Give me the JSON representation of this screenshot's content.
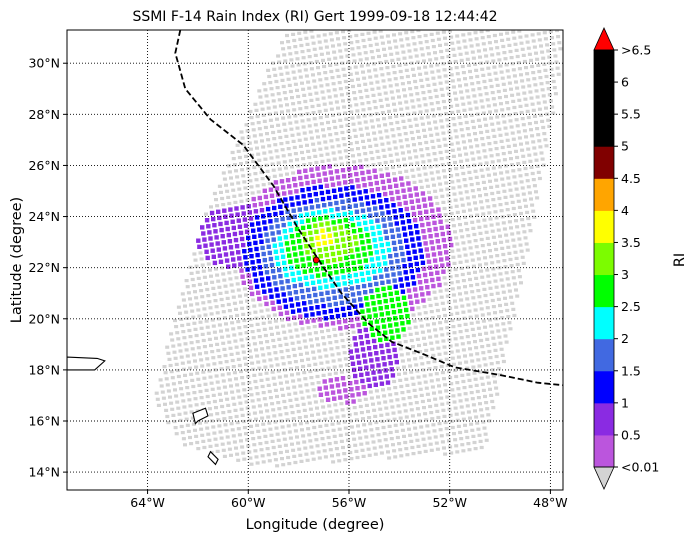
{
  "title": "SSMI F-14 Rain Index (RI) Gert 1999-09-18 12:44:42",
  "xlabel": "Longitude (degree)",
  "ylabel": "Latitude (degree)",
  "x_ticks": [
    "64°W",
    "60°W",
    "56°W",
    "52°W",
    "48°W"
  ],
  "y_ticks": [
    "14°N",
    "16°N",
    "18°N",
    "20°N",
    "22°N",
    "24°N",
    "26°N",
    "28°N",
    "30°N"
  ],
  "colorbar": {
    "label": "RI",
    "tick_labels": [
      "<0.01",
      "0.5",
      "1",
      "1.5",
      "2",
      "2.5",
      "3",
      "3.5",
      "4",
      "4.5",
      "5",
      "5.5",
      "6",
      ">6.5"
    ],
    "under_color": "#d3d3d3",
    "over_color": "#ff0000",
    "bins": [
      {
        "label": "<0.01 to 0.5",
        "color": "#bb55dd"
      },
      {
        "label": "0.5 to 1",
        "color": "#8a2be2"
      },
      {
        "label": "1 to 1.5",
        "color": "#0000ff"
      },
      {
        "label": "1.5 to 2",
        "color": "#4169e1"
      },
      {
        "label": "2 to 2.5",
        "color": "#00ffff"
      },
      {
        "label": "2.5 to 3",
        "color": "#00ff00"
      },
      {
        "label": "3 to 3.5",
        "color": "#7cfc00"
      },
      {
        "label": "3.5 to 4",
        "color": "#ffff00"
      },
      {
        "label": "4 to 4.5",
        "color": "#ffa500"
      },
      {
        "label": "4.5 to 5",
        "color": "#800000"
      },
      {
        "label": "5 to 5.5",
        "color": "#000000"
      },
      {
        "label": "5.5 to 6",
        "color": "#000000"
      },
      {
        "label": "6 to 6.5",
        "color": "#000000"
      }
    ]
  },
  "chart_data": {
    "type": "heatmap",
    "title": "SSMI F-14 Rain Index (RI) Gert 1999-09-18 12:44:42",
    "xlabel": "Longitude (degree)",
    "ylabel": "Latitude (degree)",
    "xlim": [
      -67.2,
      -47.5
    ],
    "ylim": [
      13.3,
      31.3
    ],
    "grid": true,
    "track": [
      [
        -62.7,
        31.3
      ],
      [
        -62.9,
        30.4
      ],
      [
        -62.5,
        29.0
      ],
      [
        -61.5,
        27.8
      ],
      [
        -60.2,
        26.8
      ],
      [
        -59.0,
        25.2
      ],
      [
        -58.0,
        23.5
      ],
      [
        -57.0,
        22.0
      ],
      [
        -56.3,
        21.0
      ],
      [
        -55.2,
        19.8
      ],
      [
        -54.3,
        19.1
      ],
      [
        -53.0,
        18.6
      ],
      [
        -51.8,
        18.1
      ],
      [
        -50.0,
        17.8
      ],
      [
        -48.5,
        17.5
      ],
      [
        -47.5,
        17.4
      ]
    ],
    "storm_center": [
      -57.3,
      22.3
    ],
    "swath_polygon": [
      [
        -58.5,
        31.3
      ],
      [
        -47.6,
        31.3
      ],
      [
        -47.6,
        29.5
      ],
      [
        -49.0,
        22.0
      ],
      [
        -50.6,
        14.8
      ],
      [
        -59.5,
        14.2
      ],
      [
        -62.5,
        15.0
      ],
      [
        -63.8,
        16.8
      ],
      [
        -61.8,
        24.0
      ]
    ],
    "rain_regions": [
      {
        "center": [
          -56.3,
          22.8
        ],
        "radius": [
          4.4,
          3.2
        ],
        "ri_bin": 0
      },
      {
        "center": [
          -56.6,
          22.6
        ],
        "radius": [
          3.6,
          2.6
        ],
        "ri_bin": 2
      },
      {
        "center": [
          -56.6,
          22.6
        ],
        "radius": [
          2.9,
          2.1
        ],
        "ri_bin": 3
      },
      {
        "center": [
          -56.7,
          22.7
        ],
        "radius": [
          2.3,
          1.6
        ],
        "ri_bin": 4
      },
      {
        "center": [
          -56.8,
          22.8
        ],
        "radius": [
          1.8,
          1.2
        ],
        "ri_bin": 5
      },
      {
        "center": [
          -56.8,
          23.0
        ],
        "radius": [
          1.1,
          0.75
        ],
        "ri_bin": 6
      },
      {
        "center": [
          -57.0,
          23.1
        ],
        "radius": [
          0.45,
          0.35
        ],
        "ri_bin": 7
      },
      {
        "center": [
          -54.5,
          20.2
        ],
        "radius": [
          1.0,
          1.1
        ],
        "ri_bin": 5
      },
      {
        "center": [
          -55.0,
          18.6
        ],
        "radius": [
          1.0,
          1.4
        ],
        "ri_bin": 1
      },
      {
        "center": [
          -60.3,
          23.2
        ],
        "radius": [
          1.8,
          1.3
        ],
        "ri_bin": 1
      },
      {
        "center": [
          -56.3,
          17.2
        ],
        "radius": [
          1.0,
          0.5
        ],
        "ri_bin": 0
      }
    ],
    "land": [
      {
        "name": "coast-west",
        "points": [
          [
            -67.2,
            18.5
          ],
          [
            -66.0,
            18.45
          ],
          [
            -65.7,
            18.35
          ],
          [
            -66.1,
            18.0
          ],
          [
            -67.2,
            18.0
          ]
        ]
      },
      {
        "name": "island-1",
        "points": [
          [
            -62.2,
            16.3
          ],
          [
            -61.7,
            16.5
          ],
          [
            -61.6,
            16.2
          ],
          [
            -62.0,
            16.0
          ],
          [
            -62.1,
            15.9
          ]
        ]
      },
      {
        "name": "island-2",
        "points": [
          [
            -61.5,
            14.8
          ],
          [
            -61.2,
            14.5
          ],
          [
            -61.3,
            14.3
          ],
          [
            -61.6,
            14.6
          ]
        ]
      }
    ]
  }
}
